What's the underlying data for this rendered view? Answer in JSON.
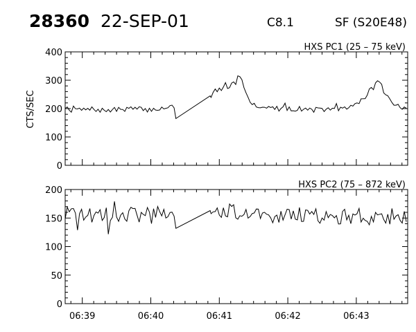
{
  "header": {
    "event_id": "28360",
    "date": "22-SEP-01",
    "goes_class": "C8.1",
    "flare_location": "SF (S20E48)"
  },
  "chart_data": [
    {
      "type": "line",
      "title": "HXS PC1 (25 – 75 keV)",
      "ylabel": "CTS/SEC",
      "xlabel": "",
      "ylim": [
        0,
        400
      ],
      "y_ticks": [
        "0",
        "100",
        "200",
        "300",
        "400"
      ],
      "x_range": [
        "06:38:45",
        "06:43:45"
      ],
      "x_ticks": [
        "06:39",
        "06:40",
        "06:41",
        "06:42",
        "06:43"
      ],
      "gap": [
        "06:40:22",
        "06:40:52"
      ],
      "series": [
        {
          "x": [
            "06:38:45",
            "06:39:00",
            "06:39:10",
            "06:39:20",
            "06:39:30",
            "06:39:40",
            "06:39:50",
            "06:40:00",
            "06:40:10",
            "06:40:20",
            "06:40:22",
            "06:40:52",
            "06:41:00",
            "06:41:10",
            "06:41:14",
            "06:41:17",
            "06:41:20",
            "06:41:25",
            "06:41:30",
            "06:41:40",
            "06:41:50",
            "06:42:00",
            "06:42:10",
            "06:42:20",
            "06:42:30",
            "06:42:40",
            "06:42:50",
            "06:43:00",
            "06:43:10",
            "06:43:15",
            "06:43:20",
            "06:43:25",
            "06:43:30",
            "06:43:38",
            "06:43:45"
          ],
          "values": [
            205,
            195,
            198,
            192,
            196,
            200,
            198,
            195,
            202,
            208,
            165,
            245,
            265,
            280,
            300,
            330,
            300,
            235,
            215,
            205,
            200,
            198,
            200,
            195,
            198,
            195,
            200,
            215,
            250,
            275,
            300,
            255,
            225,
            205,
            195
          ]
        }
      ]
    },
    {
      "type": "line",
      "title": "HXS PC2 (75 – 872 keV)",
      "ylabel": "",
      "xlabel": "",
      "ylim": [
        0,
        200
      ],
      "y_ticks": [
        "0",
        "50",
        "100",
        "150",
        "200"
      ],
      "x_range": [
        "06:38:45",
        "06:43:45"
      ],
      "x_ticks": [
        "06:39",
        "06:40",
        "06:41",
        "06:42",
        "06:43"
      ],
      "gap": [
        "06:40:22",
        "06:40:52"
      ],
      "series": [
        {
          "x": [
            "06:38:45",
            "06:39:30",
            "06:40:00",
            "06:40:20",
            "06:40:22",
            "06:40:52",
            "06:41:30",
            "06:42:00",
            "06:42:30",
            "06:43:00",
            "06:43:45"
          ],
          "values": [
            155,
            155,
            155,
            158,
            132,
            163,
            158,
            155,
            155,
            152,
            150
          ]
        }
      ]
    }
  ]
}
